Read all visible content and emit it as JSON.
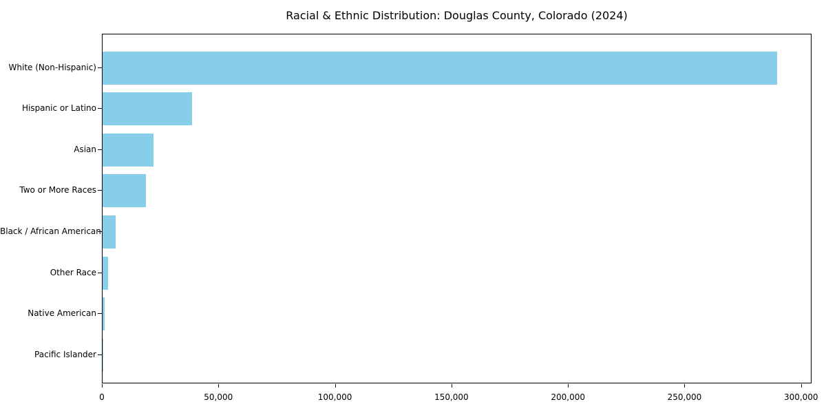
{
  "figure": {
    "background_color": "#ffffff",
    "text_color": "#000000",
    "spine_color": "#000000"
  },
  "chart_data": {
    "type": "bar",
    "orientation": "horizontal",
    "title": "Racial & Ethnic Distribution: Douglas County, Colorado (2024)",
    "xlabel": "",
    "ylabel": "",
    "categories": [
      "White (Non-Hispanic)",
      "Hispanic or Latino",
      "Asian",
      "Two or More Races",
      "Black / African American",
      "Other Race",
      "Native American",
      "Pacific Islander"
    ],
    "values": [
      290000,
      38400,
      21900,
      18600,
      5500,
      2400,
      800,
      250
    ],
    "bar_color": "#87CEEB",
    "xlim": [
      0,
      304500
    ],
    "xticks": [
      0,
      50000,
      100000,
      150000,
      200000,
      250000,
      300000
    ],
    "xtick_labels": [
      "0",
      "50,000",
      "100,000",
      "150,000",
      "200,000",
      "250,000",
      "300,000"
    ],
    "grid": false,
    "legend": "none"
  }
}
